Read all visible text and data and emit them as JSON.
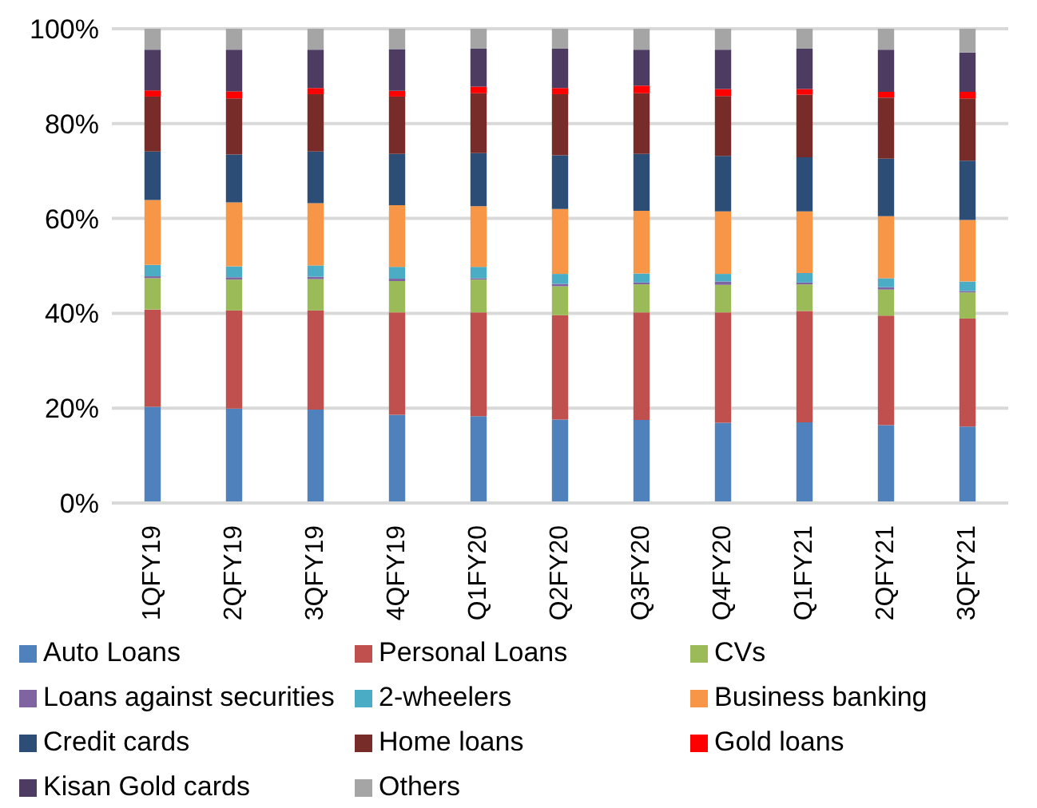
{
  "chart_data": {
    "type": "bar",
    "stacked": true,
    "categories": [
      "1QFY19",
      "2QFY19",
      "3QFY19",
      "4QFY19",
      "Q1FY20",
      "Q2FY20",
      "Q3FY20",
      "Q4FY20",
      "Q1FY21",
      "2QFY21",
      "3QFY21"
    ],
    "series": [
      {
        "name": "Auto Loans",
        "color": "#4f81bd",
        "values": [
          20.3,
          19.9,
          19.7,
          18.6,
          18.3,
          17.6,
          17.5,
          16.9,
          17.0,
          16.4,
          16.1
        ]
      },
      {
        "name": "Personal Loans",
        "color": "#c0504d",
        "values": [
          20.5,
          20.7,
          20.9,
          21.6,
          21.9,
          22.0,
          22.7,
          23.3,
          23.5,
          23.1,
          22.8
        ]
      },
      {
        "name": "CVs",
        "color": "#9bbb59",
        "values": [
          6.6,
          6.5,
          6.6,
          6.6,
          6.9,
          6.1,
          5.9,
          5.8,
          5.6,
          5.5,
          5.5
        ]
      },
      {
        "name": "Loans against securities",
        "color": "#8064a2",
        "values": [
          0.4,
          0.5,
          0.5,
          0.5,
          0.3,
          0.5,
          0.4,
          0.7,
          0.4,
          0.5,
          0.3
        ]
      },
      {
        "name": "2-wheelers",
        "color": "#4bacc6",
        "values": [
          2.4,
          2.3,
          2.4,
          2.5,
          2.4,
          2.1,
          1.9,
          1.6,
          2.0,
          1.9,
          2.0
        ]
      },
      {
        "name": "Business banking",
        "color": "#f79646",
        "values": [
          13.7,
          13.5,
          13.1,
          13.0,
          12.8,
          13.7,
          13.2,
          13.2,
          13.0,
          13.1,
          13.0
        ]
      },
      {
        "name": "Credit cards",
        "color": "#2c4d75",
        "values": [
          10.2,
          10.1,
          10.9,
          10.8,
          11.2,
          11.3,
          12.0,
          11.7,
          11.4,
          12.1,
          12.5
        ]
      },
      {
        "name": "Home loans",
        "color": "#772c2a",
        "values": [
          11.6,
          11.8,
          12.1,
          12.1,
          12.6,
          12.9,
          12.8,
          12.6,
          13.2,
          12.9,
          13.1
        ]
      },
      {
        "name": "Gold loans",
        "color": "#ff0000",
        "values": [
          1.3,
          1.5,
          1.3,
          1.2,
          1.4,
          1.3,
          1.6,
          1.5,
          1.2,
          1.2,
          1.4
        ]
      },
      {
        "name": "Kisan Gold cards",
        "color": "#4d3b62",
        "values": [
          8.6,
          8.8,
          8.1,
          8.8,
          8.0,
          8.3,
          7.6,
          8.3,
          8.5,
          8.9,
          8.3
        ]
      },
      {
        "name": "Others",
        "color": "#a5a5a5",
        "values": [
          4.4,
          4.4,
          4.4,
          4.3,
          4.2,
          4.2,
          4.4,
          4.4,
          4.2,
          4.4,
          5.0
        ]
      }
    ],
    "ylim": [
      0,
      100
    ],
    "yticks": [
      {
        "value": 0,
        "label": "0%"
      },
      {
        "value": 20,
        "label": "20%"
      },
      {
        "value": 40,
        "label": "40%"
      },
      {
        "value": 60,
        "label": "60%"
      },
      {
        "value": 80,
        "label": "80%"
      },
      {
        "value": 100,
        "label": "100%"
      }
    ],
    "grid": "y",
    "legend": "bottom"
  }
}
